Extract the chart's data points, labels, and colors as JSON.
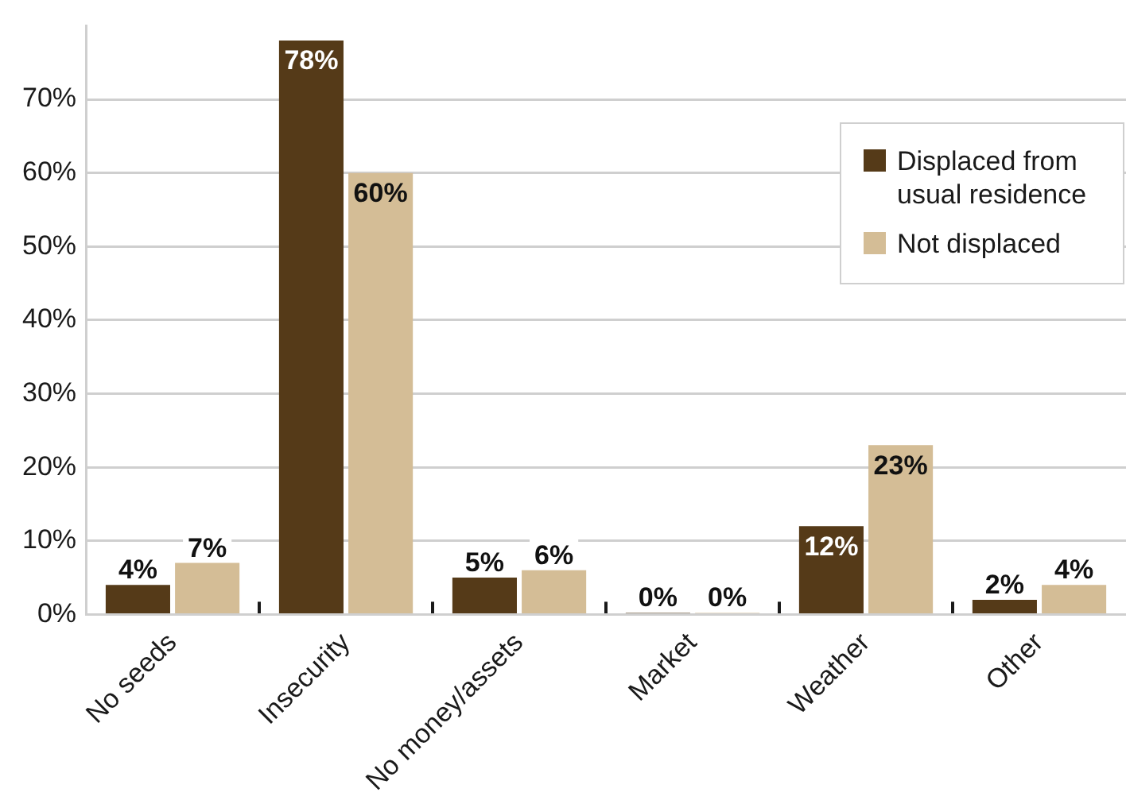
{
  "chart_data": {
    "type": "bar",
    "categories": [
      "No seeds",
      "Insecurity",
      "No money/assets",
      "Market",
      "Weather",
      "Other"
    ],
    "series": [
      {
        "name": "Displaced from usual residence",
        "color": "#553a18",
        "values": [
          4,
          78,
          5,
          0,
          12,
          2
        ],
        "value_labels": [
          "4%",
          "78%",
          "5%",
          "0%",
          "12%",
          "2%"
        ]
      },
      {
        "name": "Not displaced",
        "color": "#d4bd96",
        "values": [
          7,
          60,
          6,
          0,
          23,
          4
        ],
        "value_labels": [
          "7%",
          "60%",
          "6%",
          "0%",
          "23%",
          "4%"
        ]
      }
    ],
    "ylim": [
      0,
      80
    ],
    "yticks": [
      {
        "value": 0,
        "label": "0%"
      },
      {
        "value": 10,
        "label": "10%"
      },
      {
        "value": 20,
        "label": "20%"
      },
      {
        "value": 30,
        "label": "30%"
      },
      {
        "value": 40,
        "label": "40%"
      },
      {
        "value": 50,
        "label": "50%"
      },
      {
        "value": 60,
        "label": "60%"
      },
      {
        "value": 70,
        "label": "70%"
      }
    ],
    "grid": "y",
    "legend": "top right"
  }
}
